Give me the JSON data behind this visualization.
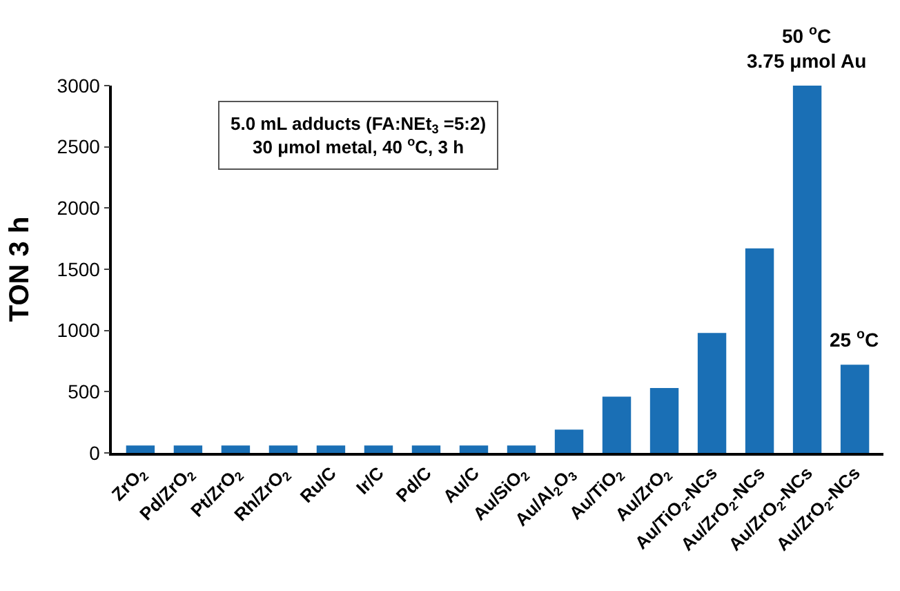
{
  "chart_data": {
    "type": "bar",
    "ylabel": "TON 3 h",
    "categories": [
      "ZrO$_{2}$",
      "Pd/ZrO$_{2}$",
      "Pt/ZrO$_{2}$",
      "Rh/ZrO$_{2}$",
      "Ru/C",
      "Ir/C",
      "Pd/C",
      "Au/C",
      "Au/SiO$_{2}$",
      "Au/Al$_{2}$O$_{3}$",
      "Au/TiO$_{2}$",
      "Au/ZrO$_{2}$",
      "Au/TiO$_{2}$-NCs",
      "Au/ZrO$_{2}$-NCs",
      "Au/ZrO$_{2}$-NCs",
      "Au/ZrO$_{2}$-NCs"
    ],
    "values": [
      60,
      60,
      60,
      60,
      60,
      60,
      60,
      60,
      60,
      190,
      460,
      530,
      980,
      1670,
      3000,
      720
    ],
    "color": "#1a6fb5",
    "ylim": [
      0,
      3000
    ],
    "yticks": [
      0,
      500,
      1000,
      1500,
      2000,
      2500,
      3000
    ],
    "annotations": [
      {
        "text": "5.0 mL adducts (FA:NEt$_{3}$ =5:2)\n30 μmol metal, 40 $^{o}$C, 3 h"
      },
      "50 $^{o}$C\n3.75 μmol Au",
      "25 $^{o}$C"
    ]
  }
}
